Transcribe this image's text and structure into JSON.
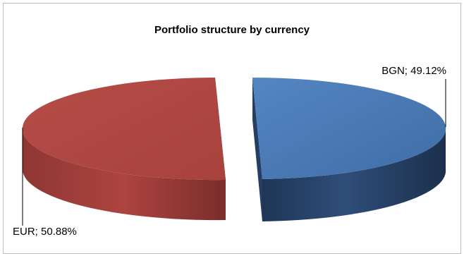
{
  "chart_data": {
    "type": "pie",
    "style": "3d-exploded",
    "title": "Portfolio structure by currency",
    "slices": [
      {
        "name": "BGN",
        "value": 49.12,
        "label": "BGN; 49.12%",
        "color": "#4a78b4",
        "side_color": "#2b4a72"
      },
      {
        "name": "EUR",
        "value": 50.88,
        "label": "EUR; 50.88%",
        "color": "#b14a45",
        "side_color": "#8c3431"
      }
    ],
    "legend": "none"
  }
}
